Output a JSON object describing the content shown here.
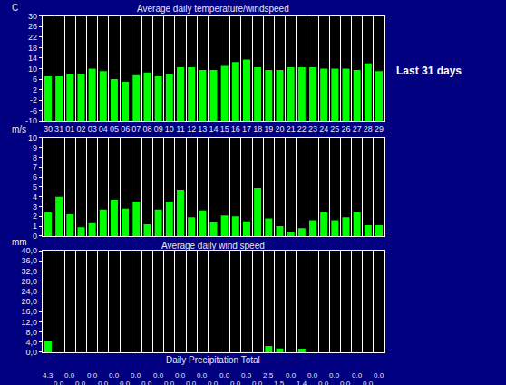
{
  "chart_data": [
    {
      "type": "bar",
      "title": "Average daily temperature/windspeed",
      "y_label": "C",
      "categories": [
        "30",
        "31",
        "01",
        "02",
        "03",
        "04",
        "05",
        "06",
        "07",
        "08",
        "09",
        "10",
        "11",
        "12",
        "13",
        "14",
        "15",
        "16",
        "17",
        "18",
        "19",
        "20",
        "21",
        "22",
        "23",
        "24",
        "25",
        "26",
        "27",
        "28",
        "29"
      ],
      "values": [
        7,
        7,
        8,
        8,
        10,
        9,
        6,
        5,
        7.5,
        8.5,
        7,
        8,
        10.5,
        10.5,
        9.5,
        9.5,
        11,
        12.5,
        13.5,
        10.5,
        9.5,
        9.5,
        10.5,
        10.5,
        10.5,
        10,
        10,
        10,
        9.5,
        12,
        9
      ],
      "color": "#00ff00",
      "ylim": [
        -10,
        30
      ],
      "yticks": [
        -10,
        -6,
        -2,
        2,
        6,
        10,
        14,
        18,
        22,
        26,
        30
      ],
      "grid": true,
      "annotations": [
        "Last 31 days"
      ]
    },
    {
      "type": "bar",
      "title": "Average daily wind speed",
      "y_label": "m/s",
      "categories": [
        "30",
        "31",
        "01",
        "02",
        "03",
        "04",
        "05",
        "06",
        "07",
        "08",
        "09",
        "10",
        "11",
        "12",
        "13",
        "14",
        "15",
        "16",
        "17",
        "18",
        "19",
        "20",
        "21",
        "22",
        "23",
        "24",
        "25",
        "26",
        "27",
        "28",
        "29"
      ],
      "values": [
        2.4,
        4.0,
        2.2,
        0.9,
        1.3,
        2.7,
        3.7,
        2.8,
        3.5,
        1.2,
        2.7,
        3.5,
        4.7,
        1.9,
        2.6,
        1.4,
        2.1,
        2.0,
        1.5,
        4.9,
        1.8,
        1.0,
        0.4,
        0.8,
        1.6,
        2.4,
        1.6,
        1.9,
        2.4,
        1.1,
        1.1
      ],
      "color": "#00ff00",
      "ylim": [
        0,
        10
      ],
      "yticks": [
        0,
        1,
        2,
        3,
        4,
        5,
        6,
        7,
        8,
        9,
        10
      ],
      "grid": true,
      "tick_labels": "y"
    },
    {
      "type": "bar",
      "x_label": "Daily Precipitation Total",
      "y_label": "mm",
      "categories": [
        "30",
        "31",
        "01",
        "02",
        "03",
        "04",
        "05",
        "06",
        "07",
        "08",
        "09",
        "10",
        "11",
        "12",
        "13",
        "14",
        "15",
        "16",
        "17",
        "18",
        "19",
        "20",
        "21",
        "22",
        "23",
        "24",
        "25",
        "26",
        "27",
        "28",
        "29"
      ],
      "values": [
        4.3,
        0,
        0,
        0,
        0,
        0,
        0,
        0,
        0,
        0,
        0,
        0,
        0,
        0,
        0,
        0,
        0,
        0,
        0,
        0,
        2.5,
        1.5,
        0,
        1.4,
        0,
        0,
        0,
        0,
        0,
        0,
        0
      ],
      "value_labels": [
        "4.3",
        "0.0",
        "0.0",
        "0.0",
        "0.0",
        "0.0",
        "0.0",
        "0.0",
        "0.0",
        "0.0",
        "0.0",
        "0.0",
        "0.0",
        "0.0",
        "0.0",
        "0.0",
        "0.0",
        "0.0",
        "0.0",
        "0.0",
        "2.5",
        "1.5",
        "0.0",
        "1.4",
        "0.0",
        "0.0",
        "0.0",
        "0.0",
        "0.0",
        "0.0",
        "0.0"
      ],
      "data_labels": true,
      "color": "#00ff00",
      "ylim": [
        0,
        40
      ],
      "yticks": [
        {
          "value": 0,
          "label": "0,0"
        },
        {
          "value": 4,
          "label": "4,0"
        },
        {
          "value": 8,
          "label": "8,0"
        },
        {
          "value": 12,
          "label": "12,0"
        },
        {
          "value": 16,
          "label": "16,0"
        },
        {
          "value": 20,
          "label": "20,0"
        },
        {
          "value": 24,
          "label": "24,0"
        },
        {
          "value": 28,
          "label": "28,0"
        },
        {
          "value": 32,
          "label": "32,0"
        },
        {
          "value": 36,
          "label": "36,0"
        },
        {
          "value": 40,
          "label": "40,0"
        }
      ],
      "grid": true,
      "tick_labels": "y"
    }
  ]
}
